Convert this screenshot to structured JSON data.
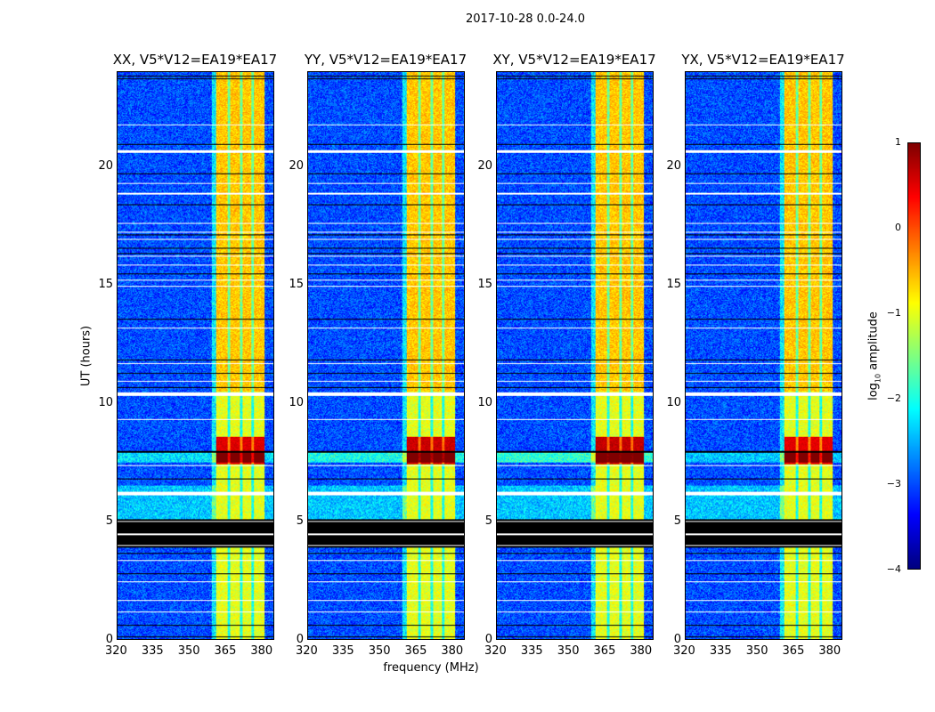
{
  "chart_data": {
    "type": "heatmap",
    "title": "2017-10-28 0.0-24.0",
    "xlabel": "frequency (MHz)",
    "ylabel": "UT (hours)",
    "xlim": [
      320,
      385
    ],
    "ylim": [
      0,
      24
    ],
    "xticks": [
      320,
      335,
      350,
      365,
      380
    ],
    "yticks": [
      0,
      5,
      10,
      15,
      20
    ],
    "panels": [
      {
        "title": "XX, V5*V12=EA19*EA17",
        "rfi_strength": 0.6
      },
      {
        "title": "YY, V5*V12=EA19*EA17",
        "rfi_strength": 0.8
      },
      {
        "title": "XY, V5*V12=EA19*EA17",
        "rfi_strength": 0.9
      },
      {
        "title": "YX, V5*V12=EA19*EA17",
        "rfi_strength": 0.5
      }
    ],
    "signal_band_mhz": [
      361,
      381
    ],
    "flagged_hours": [
      [
        3.9,
        5.1
      ]
    ],
    "colorbar": {
      "label": "log10 amplitude",
      "label_main": "log",
      "label_sub": "10",
      "label_rest": " amplitude",
      "colormap": "jet",
      "range": [
        -4,
        1
      ],
      "ticks": [
        1,
        0,
        -1,
        -2,
        -3,
        -4
      ],
      "tick_labels": [
        "1",
        "0",
        "−1",
        "−2",
        "−3",
        "−4"
      ]
    }
  }
}
